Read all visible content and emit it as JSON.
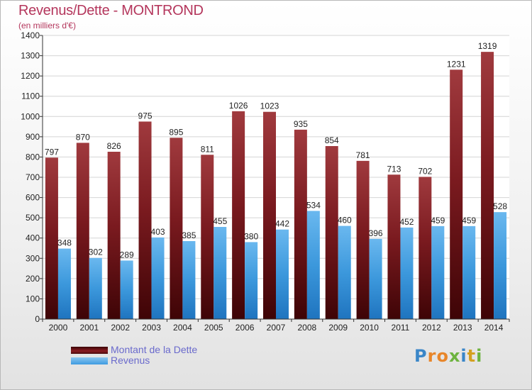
{
  "title": "Revenus/Dette - MONTROND",
  "subtitle": "(en milliers d'€)",
  "legend": {
    "items": [
      {
        "label": "Montant de la Dette",
        "color": "#8b1c22"
      },
      {
        "label": "Revenus",
        "color": "#3d9be0"
      }
    ]
  },
  "logo": {
    "letters": [
      {
        "ch": "P",
        "color": "#3a86c8"
      },
      {
        "ch": "r",
        "color": "#e8862a"
      },
      {
        "ch": "o",
        "color": "#e8862a"
      },
      {
        "ch": "x",
        "color": "#6db33f"
      },
      {
        "ch": "i",
        "color": "#3a86c8"
      },
      {
        "ch": "t",
        "color": "#d4a020"
      },
      {
        "ch": "i",
        "color": "#6db33f"
      }
    ]
  },
  "chart_data": {
    "type": "bar",
    "categories": [
      "2000",
      "2001",
      "2002",
      "2003",
      "2004",
      "2005",
      "2006",
      "2007",
      "2008",
      "2009",
      "2010",
      "2011",
      "2012",
      "2013",
      "2014"
    ],
    "series": [
      {
        "name": "Montant de la Dette",
        "color": "#8b1c22",
        "values": [
          797,
          870,
          826,
          975,
          895,
          811,
          1026,
          1023,
          935,
          854,
          781,
          713,
          702,
          1231,
          1319
        ]
      },
      {
        "name": "Revenus",
        "color": "#3d9be0",
        "values": [
          348,
          302,
          289,
          403,
          385,
          455,
          380,
          442,
          534,
          460,
          396,
          452,
          459,
          459,
          528
        ]
      }
    ],
    "ylim": [
      0,
      1400
    ],
    "yticks": [
      0,
      100,
      200,
      300,
      400,
      500,
      600,
      700,
      800,
      900,
      1000,
      1100,
      1200,
      1300,
      1400
    ],
    "grid": true
  }
}
